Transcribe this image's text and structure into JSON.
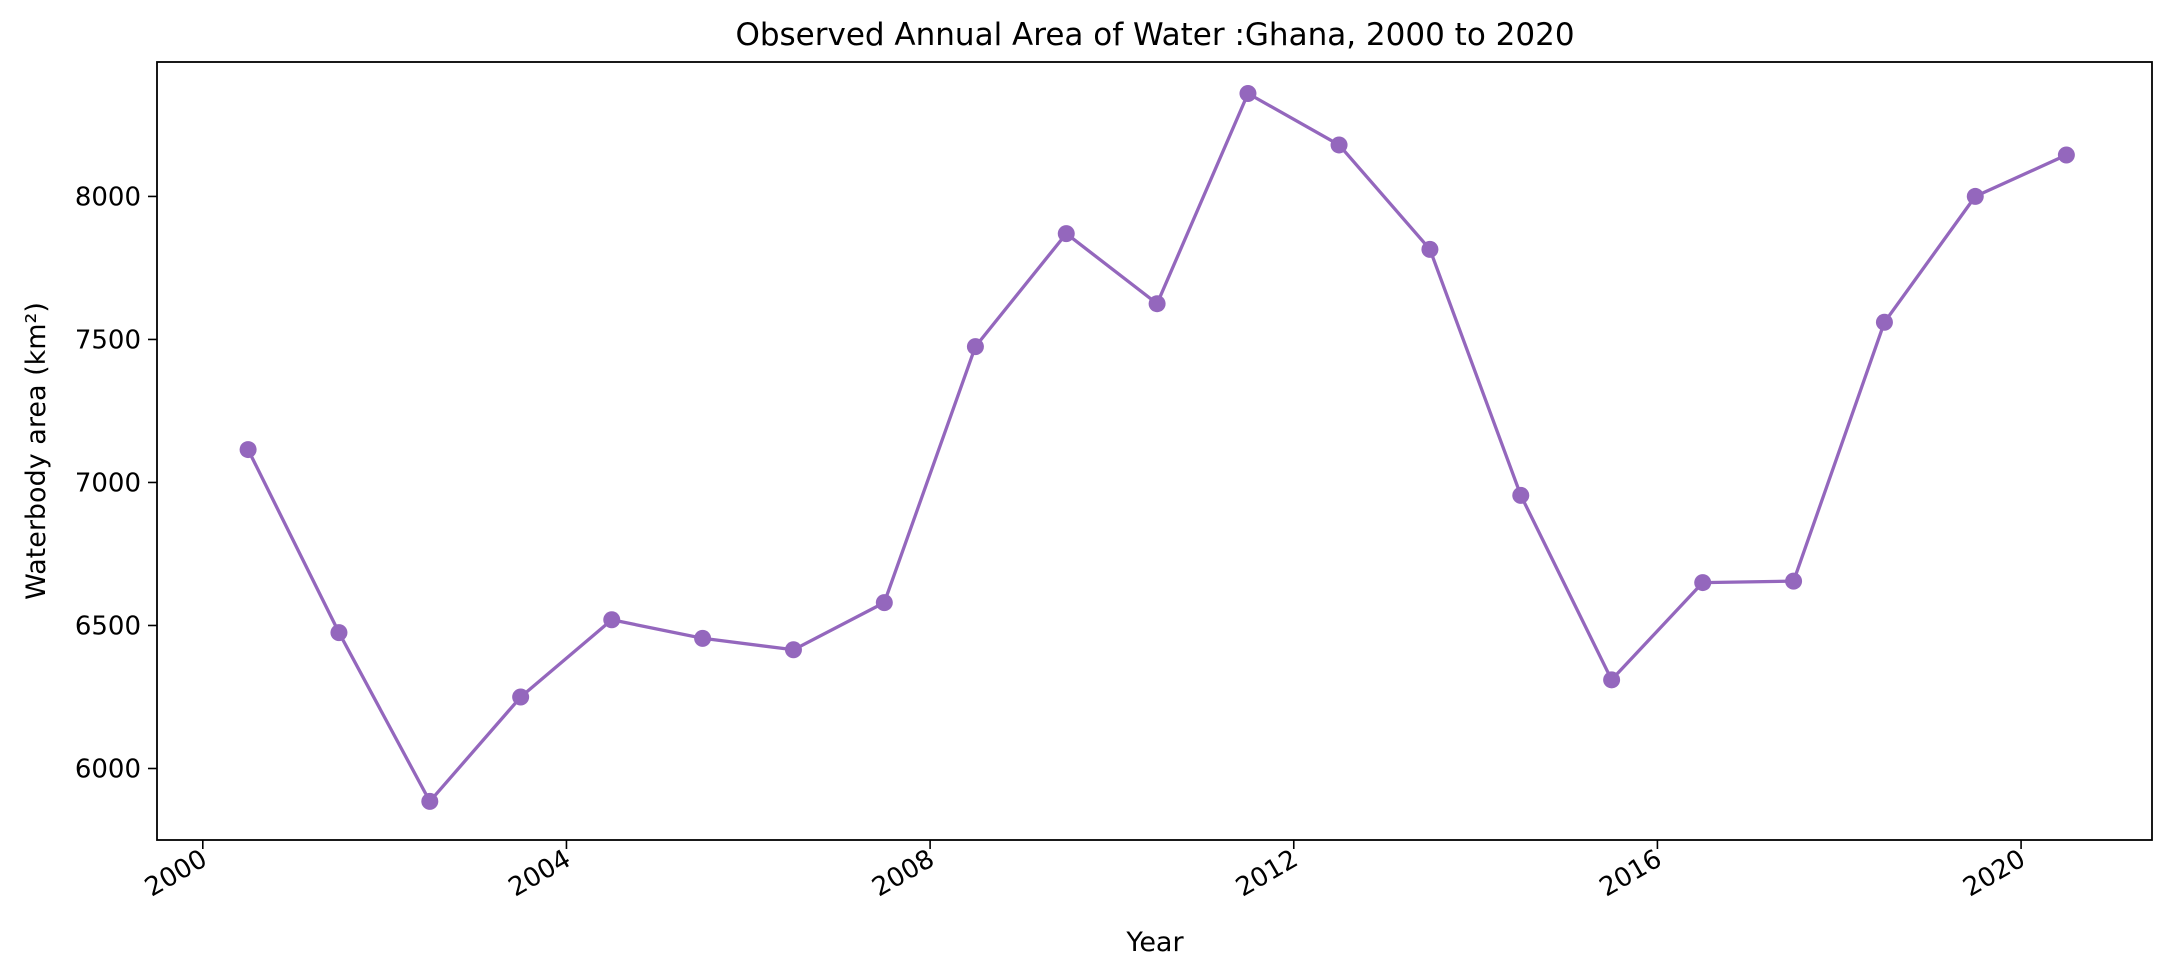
{
  "chart_data": {
    "type": "line",
    "title": "Observed Annual Area of Water :Ghana, 2000 to 2020",
    "xlabel": "Year",
    "ylabel": "Waterbody area (km²)",
    "grid": false,
    "legend": "none",
    "x_ticks": [
      "2000",
      "2004",
      "2008",
      "2012",
      "2016",
      "2020"
    ],
    "y_ticks": [
      "6000",
      "6500",
      "7000",
      "7500",
      "8000"
    ],
    "xlim": [
      "1999-07-01",
      "2021-06-10"
    ],
    "ylim": [
      5750,
      8470
    ],
    "color": "#9467bd",
    "x": [
      "2000-07-01",
      "2001-07-01",
      "2002-07-01",
      "2003-07-01",
      "2004-07-01",
      "2005-07-01",
      "2006-07-01",
      "2007-07-01",
      "2008-07-01",
      "2009-07-01",
      "2010-07-01",
      "2011-07-01",
      "2012-07-01",
      "2013-07-01",
      "2014-07-01",
      "2015-07-01",
      "2016-07-01",
      "2017-07-01",
      "2018-07-01",
      "2019-07-01",
      "2020-07-01"
    ],
    "series": [
      {
        "values": [
          7115,
          6475,
          5885,
          6250,
          6520,
          6455,
          6415,
          6580,
          7475,
          7870,
          7625,
          8360,
          8180,
          7815,
          6955,
          6310,
          6650,
          6655,
          7560,
          8000,
          8145
        ]
      }
    ]
  }
}
